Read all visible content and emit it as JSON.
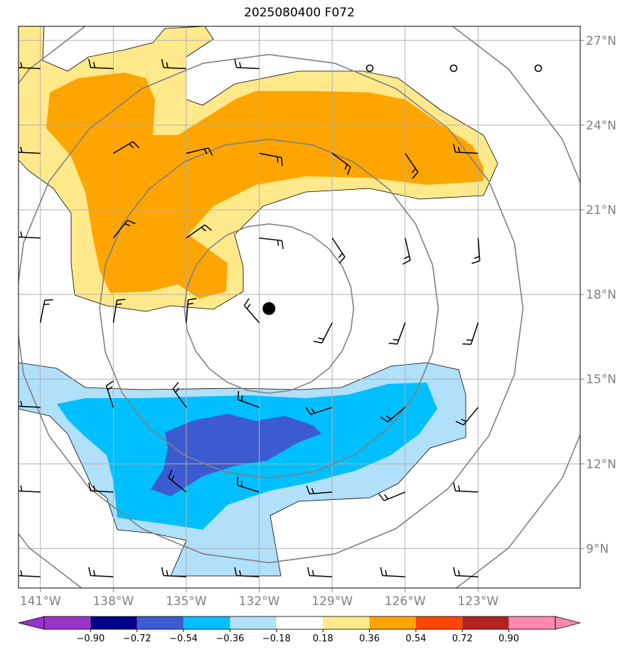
{
  "title": "2025080400 F072",
  "map": {
    "lon_range": [
      -141.9,
      -118.8
    ],
    "lat_range": [
      7.6,
      27.5
    ],
    "storm_center": {
      "lon": -131.6,
      "lat": 17.5
    },
    "x_ticks": [
      {
        "lon": -141,
        "label": "141°W"
      },
      {
        "lon": -138,
        "label": "138°W"
      },
      {
        "lon": -135,
        "label": "135°W"
      },
      {
        "lon": -132,
        "label": "132°W"
      },
      {
        "lon": -129,
        "label": "129°W"
      },
      {
        "lon": -126,
        "label": "126°W"
      },
      {
        "lon": -123,
        "label": "123°W"
      }
    ],
    "y_ticks": [
      {
        "lat": 9,
        "label": "9°N"
      },
      {
        "lat": 12,
        "label": "12°N"
      },
      {
        "lat": 15,
        "label": "15°N"
      },
      {
        "lat": 18,
        "label": "18°N"
      },
      {
        "lat": 21,
        "label": "21°N"
      },
      {
        "lat": 24,
        "label": "24°N"
      },
      {
        "lat": 27,
        "label": "27°N"
      }
    ],
    "range_rings_deg": [
      3,
      6,
      9,
      12
    ],
    "barb_lons": [
      -141,
      -138,
      -135,
      -132,
      -129,
      -126,
      -123
    ],
    "barb_lats": [
      8,
      11,
      14,
      17,
      20,
      23,
      26
    ],
    "fill_colors": {
      "-0.90": "#0000a0",
      "-0.54": "#3d5bd1",
      "-0.36": "#00bfff",
      "-0.18": "#b0e0fa",
      "0.18": "#ffe98a",
      "0.36": "#ffa500"
    }
  },
  "colorbar": {
    "levels": [
      "−0.90",
      "−0.72",
      "−0.54",
      "−0.36",
      "−0.18",
      "0.18",
      "0.36",
      "0.54",
      "0.72",
      "0.90"
    ],
    "colors": [
      "#9933cc",
      "#00008b",
      "#3d5bd1",
      "#00bfff",
      "#b0e0fa",
      "#ffffff",
      "#ffe98a",
      "#ffa500",
      "#ff4500",
      "#b22222",
      "#ff88b0",
      "#ff88b0"
    ]
  }
}
